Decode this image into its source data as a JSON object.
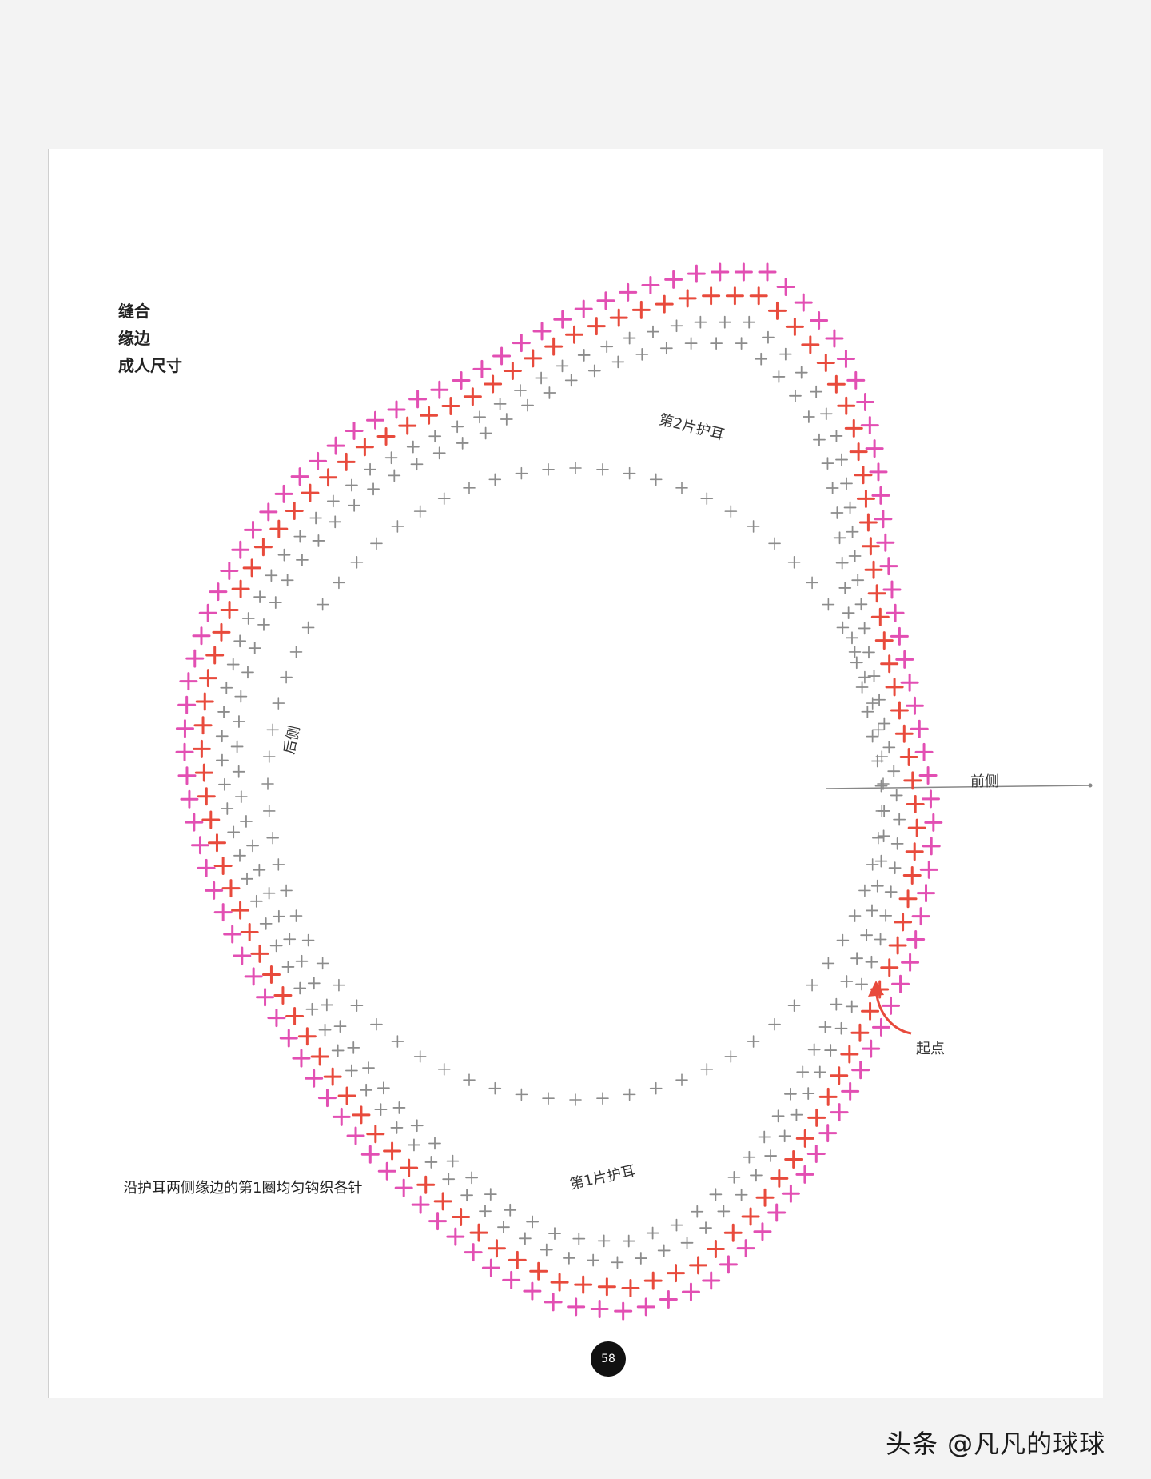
{
  "legend": {
    "line1": "缝合",
    "line2": "缘边",
    "line3": "成人尺寸"
  },
  "note": "沿护耳两侧缘边的第1圈均匀钩织各针",
  "labels": {
    "ear_flap_2": "第2片护耳",
    "ear_flap_1": "第1片护耳",
    "back": "后侧",
    "front": "前侧",
    "start": "起点"
  },
  "page_number": "58",
  "watermark": "头条 @凡凡的球球",
  "colors": {
    "outer_round": "#e24fb3",
    "middle_round": "#e84a3c",
    "inner_rounds": "#8c8c8c",
    "start_arrow": "#e84a3c"
  },
  "chart_symbols": {
    "stitch": "single-crochet-cross",
    "increase": "two-stitches-in-one"
  }
}
